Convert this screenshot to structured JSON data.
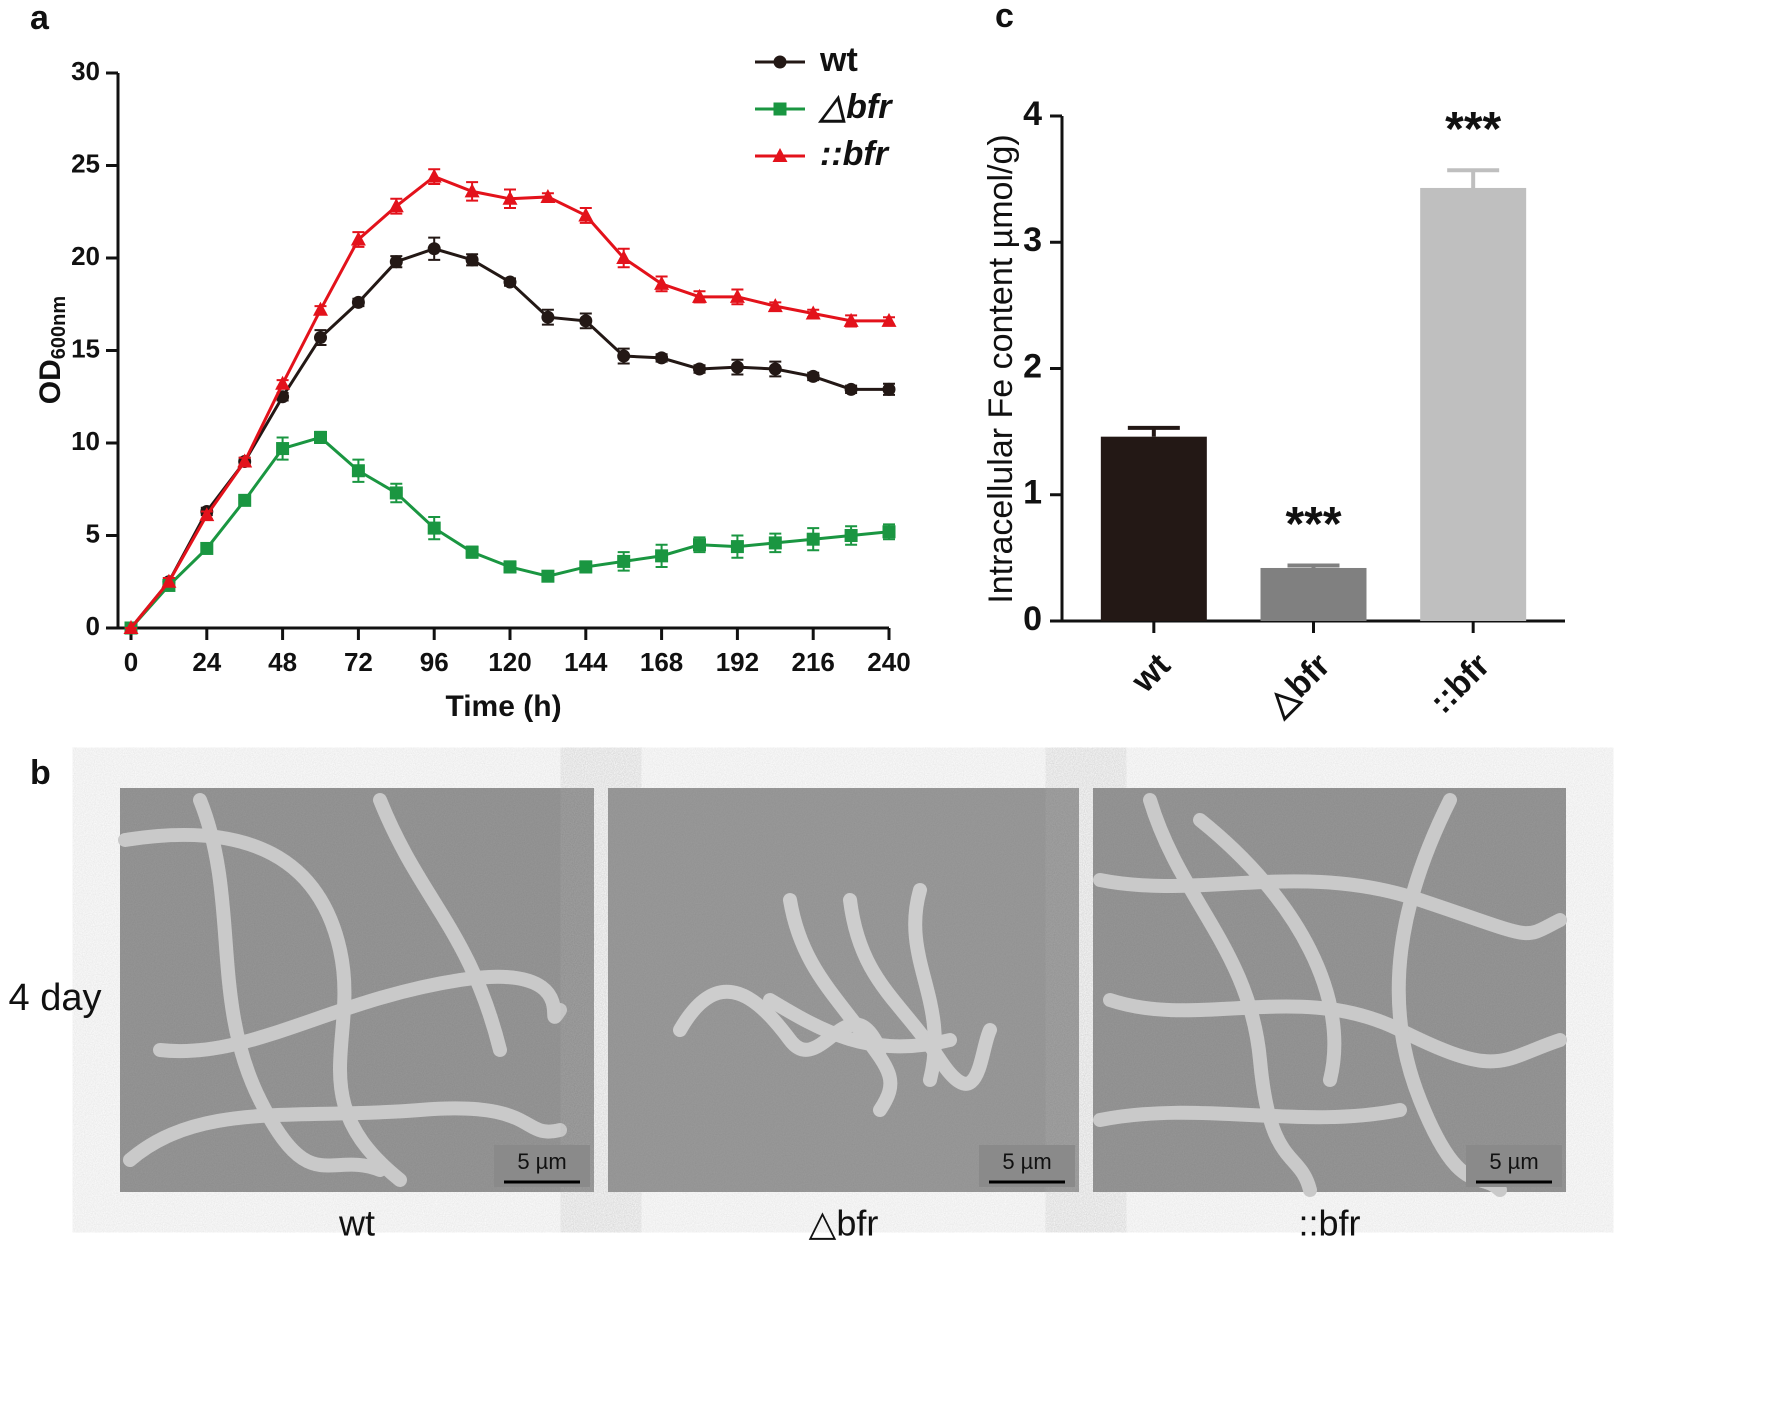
{
  "panel_labels": [
    "a",
    "b",
    "c"
  ],
  "chart_data": [
    {
      "type": "line",
      "xlabel": "Time (h)",
      "ylabel": "OD",
      "ylabel_subscript": "600nm",
      "x": [
        0,
        12,
        24,
        36,
        48,
        60,
        72,
        84,
        96,
        108,
        120,
        132,
        144,
        156,
        168,
        180,
        192,
        204,
        216,
        228,
        240
      ],
      "xlim": [
        0,
        240
      ],
      "xticks": [
        0,
        24,
        48,
        72,
        96,
        120,
        144,
        168,
        192,
        216,
        240
      ],
      "ylim": [
        0,
        30
      ],
      "yticks": [
        0,
        5,
        10,
        15,
        20,
        25,
        30
      ],
      "legend": "upper right",
      "series": [
        {
          "name": "wt",
          "color": "#231815",
          "marker": "circle",
          "values": [
            0,
            2.5,
            6.3,
            9.0,
            12.5,
            15.7,
            17.6,
            19.8,
            20.5,
            19.9,
            18.7,
            16.8,
            16.6,
            14.7,
            14.6,
            14.0,
            14.1,
            14.0,
            13.6,
            12.9,
            12.9
          ],
          "errors": [
            0,
            0.2,
            0.2,
            0.2,
            0.2,
            0.4,
            0.2,
            0.3,
            0.6,
            0.3,
            0.2,
            0.4,
            0.4,
            0.4,
            0.2,
            0.2,
            0.4,
            0.4,
            0.2,
            0.2,
            0.3
          ]
        },
        {
          "name": "△bfr",
          "color": "#1a9641",
          "marker": "square",
          "values": [
            0,
            2.3,
            4.3,
            6.9,
            9.7,
            10.3,
            8.5,
            7.3,
            5.4,
            4.1,
            3.3,
            2.8,
            3.3,
            3.6,
            3.9,
            4.5,
            4.4,
            4.6,
            4.8,
            5.0,
            5.2
          ],
          "errors": [
            0,
            0.2,
            0.2,
            0.2,
            0.6,
            0.3,
            0.6,
            0.5,
            0.6,
            0.3,
            0.3,
            0.2,
            0.3,
            0.5,
            0.6,
            0.4,
            0.6,
            0.5,
            0.6,
            0.5,
            0.4
          ]
        },
        {
          "name": "::bfr",
          "color": "#e3121b",
          "marker": "triangle",
          "values": [
            0,
            2.5,
            6.1,
            9.0,
            13.2,
            17.2,
            21.0,
            22.8,
            24.4,
            23.6,
            23.2,
            23.3,
            22.3,
            20.0,
            18.6,
            17.9,
            17.9,
            17.4,
            17.0,
            16.6,
            16.6
          ],
          "errors": [
            0,
            0.2,
            0.2,
            0.2,
            0.2,
            0.2,
            0.4,
            0.4,
            0.4,
            0.5,
            0.5,
            0.2,
            0.4,
            0.5,
            0.4,
            0.3,
            0.4,
            0.2,
            0.2,
            0.3,
            0.2
          ]
        }
      ]
    },
    {
      "type": "bar",
      "ylabel": "Intracellular Fe content µmol/g)",
      "categories": [
        "wt",
        "△bfr",
        "::bfr"
      ],
      "values": [
        1.46,
        0.42,
        3.43
      ],
      "errors": [
        0.07,
        0.02,
        0.14
      ],
      "colors": [
        "#231815",
        "#808080",
        "#bfbfbf"
      ],
      "annotations": [
        null,
        "***",
        "***"
      ],
      "ylim": [
        0,
        4
      ],
      "yticks": [
        0,
        1,
        2,
        3,
        4
      ]
    }
  ],
  "micrographs": {
    "row_label": "4 day",
    "scale_bar": "5 µm",
    "labels": [
      "wt",
      "△bfr",
      "::bfr"
    ]
  }
}
